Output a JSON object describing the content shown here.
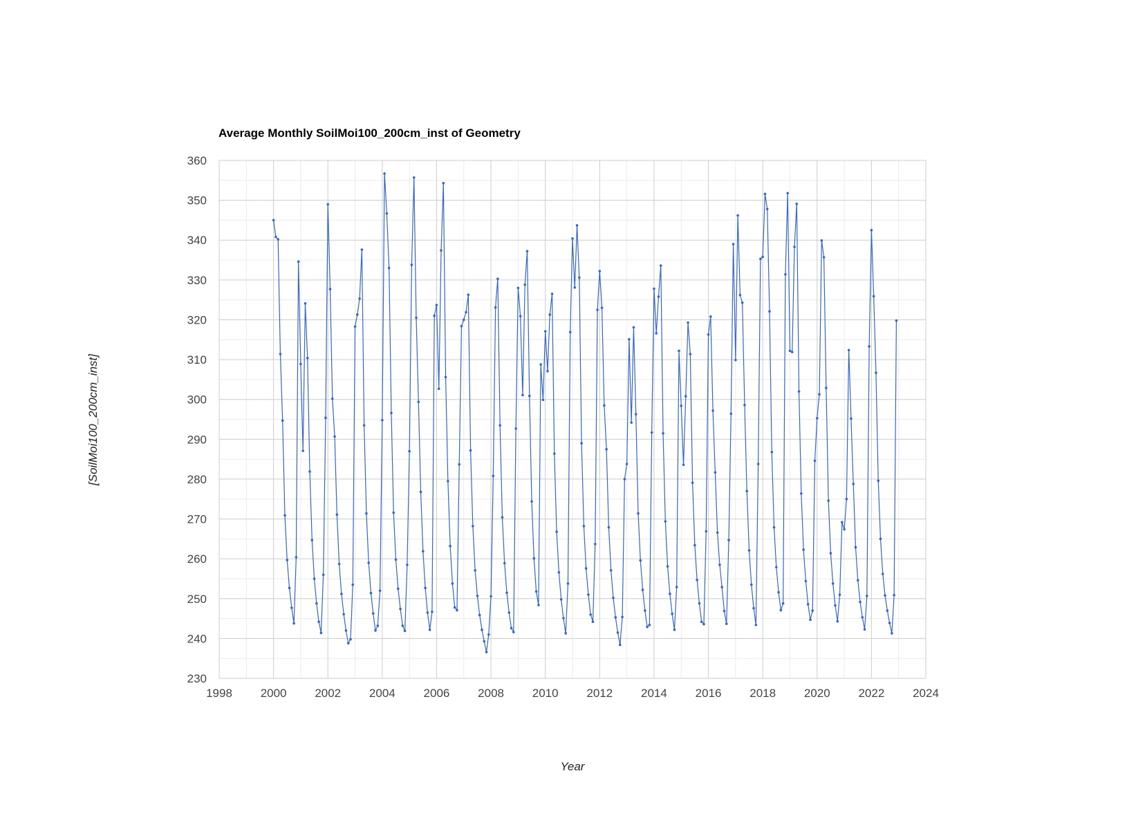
{
  "chart_data": {
    "type": "line",
    "title": "Average Monthly SoilMoi100_200cm_inst of Geometry",
    "xlabel": "Year",
    "ylabel": "[SoilMoi100_200cm_inst]",
    "xlim": [
      1998,
      2024
    ],
    "ylim": [
      230,
      360
    ],
    "x_ticks": [
      "1998",
      "2000",
      "2002",
      "2004",
      "2006",
      "2008",
      "2010",
      "2012",
      "2014",
      "2016",
      "2018",
      "2020",
      "2022",
      "2024"
    ],
    "y_ticks": [
      "230",
      "240",
      "250",
      "260",
      "270",
      "280",
      "290",
      "300",
      "310",
      "320",
      "330",
      "340",
      "350",
      "360"
    ],
    "grid": true,
    "legend": "none",
    "series_color": "#3366cc",
    "series": [
      {
        "start_year": 2000,
        "frequency": "monthly",
        "values": [
          345.0,
          340.8,
          340.2,
          311.4,
          294.7,
          270.9,
          259.7,
          252.7,
          247.7,
          243.8,
          260.4,
          334.6,
          308.9,
          287.1,
          324.1,
          310.4,
          281.9,
          264.7,
          255.0,
          248.8,
          244.2,
          241.4,
          256.0,
          295.4,
          349.0,
          327.7,
          300.2,
          290.7,
          271.1,
          258.7,
          251.2,
          246.1,
          242.0,
          238.8,
          239.8,
          253.5,
          318.3,
          321.3,
          325.3,
          337.6,
          293.5,
          271.4,
          259.0,
          251.4,
          246.3,
          242.0,
          243.2,
          252.0,
          294.8,
          356.7,
          346.7,
          333.0,
          296.6,
          271.6,
          259.8,
          252.5,
          247.4,
          243.2,
          241.9,
          258.5,
          287.0,
          333.8,
          355.7,
          320.5,
          299.4,
          276.8,
          261.9,
          252.7,
          246.5,
          242.2,
          246.7,
          321.0,
          323.7,
          302.7,
          337.4,
          354.3,
          305.6,
          279.5,
          263.2,
          253.8,
          247.8,
          247.1,
          283.7,
          318.4,
          320.0,
          321.9,
          326.3,
          287.2,
          268.2,
          257.1,
          250.7,
          245.9,
          242.2,
          239.3,
          236.6,
          241.0,
          250.6,
          280.8,
          323.1,
          330.3,
          293.5,
          270.4,
          258.9,
          251.5,
          246.5,
          242.6,
          241.6,
          292.7,
          328.0,
          320.9,
          301.1,
          328.8,
          337.2,
          300.9,
          274.4,
          260.1,
          251.8,
          248.4,
          308.8,
          299.9,
          317.1,
          307.1,
          321.3,
          326.5,
          286.4,
          266.8,
          256.6,
          249.8,
          245.1,
          241.3,
          253.8,
          316.9,
          340.4,
          328.1,
          343.7,
          330.6,
          289.0,
          268.2,
          257.6,
          251.0,
          246.0,
          244.2,
          263.7,
          322.5,
          332.2,
          323.0,
          298.5,
          287.5,
          267.9,
          257.1,
          250.2,
          245.3,
          241.5,
          238.4,
          245.4,
          280.0,
          283.8,
          315.1,
          294.2,
          318.1,
          296.3,
          271.4,
          259.6,
          252.2,
          247.0,
          242.9,
          243.4,
          291.7,
          327.8,
          316.6,
          325.8,
          333.6,
          291.5,
          269.4,
          258.1,
          251.2,
          246.2,
          242.2,
          252.9,
          312.2,
          298.4,
          283.6,
          300.8,
          319.3,
          311.4,
          279.1,
          263.4,
          254.7,
          248.8,
          244.2,
          243.6,
          266.9,
          316.3,
          320.8,
          297.2,
          281.7,
          266.6,
          258.5,
          252.9,
          246.9,
          243.7,
          264.7,
          296.4,
          339.0,
          309.9,
          346.2,
          326.2,
          324.3,
          298.6,
          277.0,
          262.1,
          253.5,
          247.6,
          243.4,
          283.8,
          335.3,
          335.8,
          351.6,
          347.8,
          322.1,
          286.8,
          267.9,
          257.9,
          251.6,
          247.1,
          248.8,
          331.4,
          351.8,
          312.2,
          311.9,
          338.3,
          349.1,
          302.0,
          276.4,
          262.3,
          254.4,
          248.6,
          244.7,
          247.0,
          284.6,
          295.3,
          301.3,
          339.9,
          335.7,
          302.9,
          274.6,
          261.4,
          253.8,
          248.3,
          244.3,
          251.0,
          269.2,
          267.4,
          275.0,
          312.4,
          295.2,
          278.8,
          262.9,
          254.6,
          249.2,
          245.3,
          242.3,
          250.7,
          313.3,
          342.5,
          325.9,
          306.7,
          279.6,
          265.0,
          256.2,
          250.8,
          247.0,
          243.9,
          241.3,
          250.9,
          319.8
        ]
      }
    ]
  }
}
